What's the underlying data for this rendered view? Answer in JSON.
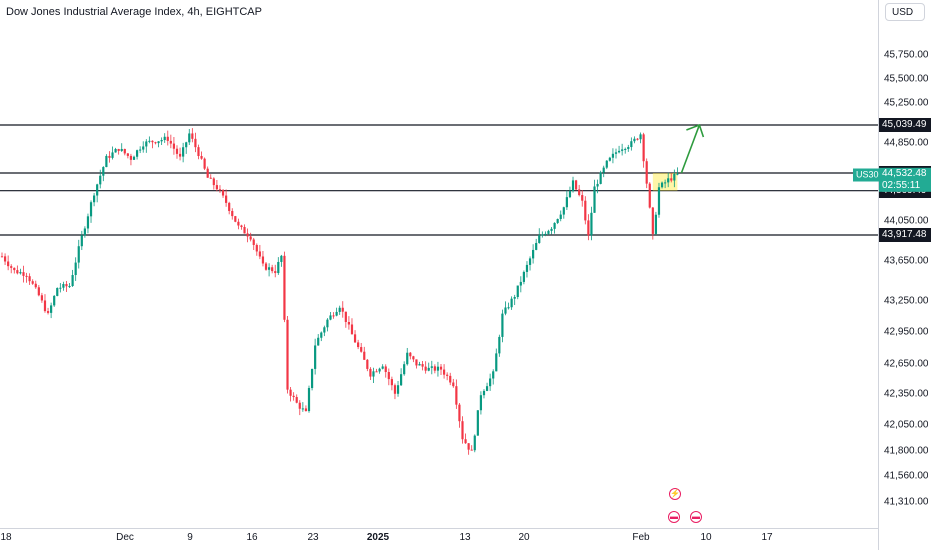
{
  "header": {
    "title": "Dow Jones Industrial Average Index, 4h, EIGHTCAP",
    "currency": "USD"
  },
  "chart_data": {
    "type": "candlestick",
    "title": "Dow Jones Industrial Average Index, 4h, EIGHTCAP",
    "symbol": "US30",
    "currency": "USD",
    "y_ticks": [
      "45,750.00",
      "45,500.00",
      "45,250.00",
      "44,850.00",
      "44,050.00",
      "43,650.00",
      "43,250.00",
      "42,950.00",
      "42,650.00",
      "42,350.00",
      "42,050.00",
      "41,800.00",
      "41,560.00",
      "41,310.00"
    ],
    "x_ticks": [
      {
        "label": "18"
      },
      {
        "label": "Dec"
      },
      {
        "label": "9"
      },
      {
        "label": "16"
      },
      {
        "label": "23"
      },
      {
        "label": "2025",
        "bold": true
      },
      {
        "label": "13"
      },
      {
        "label": "20"
      },
      {
        "label": "Feb"
      },
      {
        "label": "10"
      },
      {
        "label": "17"
      }
    ],
    "horizontal_levels": [
      45039.49,
      44550.23,
      44369.49,
      43917.48
    ],
    "level_labels": [
      "45,039.49",
      "44,550.23",
      "44,369.49",
      "43,917.48"
    ],
    "current_price": {
      "value": 44532.48,
      "label": "44,532.48",
      "countdown": "02:55:11"
    },
    "path": [
      {
        "t": 0,
        "p": 43700
      },
      {
        "t": 4,
        "p": 43550
      },
      {
        "t": 8,
        "p": 43520
      },
      {
        "t": 12,
        "p": 43300
      },
      {
        "t": 15,
        "p": 43100
      },
      {
        "t": 18,
        "p": 43380
      },
      {
        "t": 22,
        "p": 43400
      },
      {
        "t": 26,
        "p": 43900
      },
      {
        "t": 30,
        "p": 44350
      },
      {
        "t": 34,
        "p": 44700
      },
      {
        "t": 38,
        "p": 44800
      },
      {
        "t": 42,
        "p": 44700
      },
      {
        "t": 46,
        "p": 44850
      },
      {
        "t": 50,
        "p": 44880
      },
      {
        "t": 54,
        "p": 44900
      },
      {
        "t": 58,
        "p": 44700
      },
      {
        "t": 61,
        "p": 44950
      },
      {
        "t": 64,
        "p": 44750
      },
      {
        "t": 67,
        "p": 44500
      },
      {
        "t": 70,
        "p": 44400
      },
      {
        "t": 73,
        "p": 44250
      },
      {
        "t": 77,
        "p": 44000
      },
      {
        "t": 81,
        "p": 43900
      },
      {
        "t": 85,
        "p": 43600
      },
      {
        "t": 89,
        "p": 43550
      },
      {
        "t": 91,
        "p": 43700
      },
      {
        "t": 93,
        "p": 42350
      },
      {
        "t": 96,
        "p": 42200
      },
      {
        "t": 99,
        "p": 42100
      },
      {
        "t": 102,
        "p": 42800
      },
      {
        "t": 106,
        "p": 43050
      },
      {
        "t": 110,
        "p": 43200
      },
      {
        "t": 114,
        "p": 42900
      },
      {
        "t": 117,
        "p": 42700
      },
      {
        "t": 120,
        "p": 42500
      },
      {
        "t": 124,
        "p": 42600
      },
      {
        "t": 128,
        "p": 42300
      },
      {
        "t": 132,
        "p": 42700
      },
      {
        "t": 135,
        "p": 42600
      },
      {
        "t": 139,
        "p": 42550
      },
      {
        "t": 143,
        "p": 42550
      },
      {
        "t": 147,
        "p": 42400
      },
      {
        "t": 150,
        "p": 41850
      },
      {
        "t": 153,
        "p": 41700
      },
      {
        "t": 156,
        "p": 42300
      },
      {
        "t": 160,
        "p": 42500
      },
      {
        "t": 163,
        "p": 43100
      },
      {
        "t": 167,
        "p": 43300
      },
      {
        "t": 171,
        "p": 43600
      },
      {
        "t": 175,
        "p": 43900
      },
      {
        "t": 179,
        "p": 44000
      },
      {
        "t": 183,
        "p": 44200
      },
      {
        "t": 186,
        "p": 44450
      },
      {
        "t": 189,
        "p": 44250
      },
      {
        "t": 191,
        "p": 43900
      },
      {
        "t": 193,
        "p": 44400
      },
      {
        "t": 197,
        "p": 44650
      },
      {
        "t": 201,
        "p": 44800
      },
      {
        "t": 205,
        "p": 44850
      },
      {
        "t": 208,
        "p": 44950
      },
      {
        "t": 210,
        "p": 44450
      },
      {
        "t": 212,
        "p": 43900
      },
      {
        "t": 214,
        "p": 44400
      },
      {
        "t": 217,
        "p": 44480
      },
      {
        "t": 220,
        "p": 44532
      }
    ],
    "projection_arrow": {
      "from": 44550,
      "to": 45039.49
    }
  }
}
